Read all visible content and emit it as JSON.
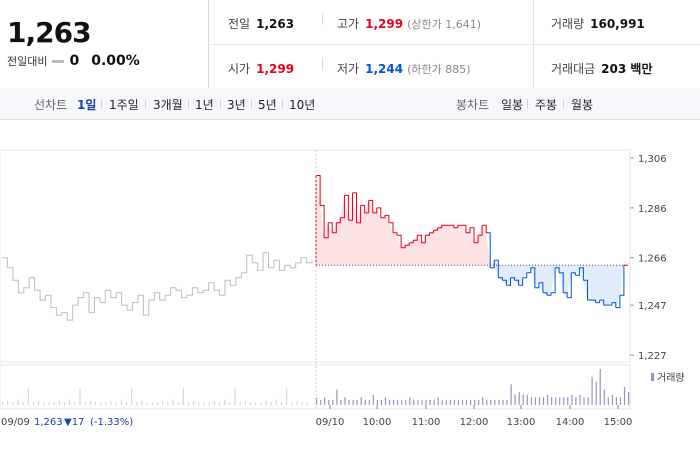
{
  "quote": {
    "price": "1,263",
    "change_label": "전일대비",
    "change_value": "0",
    "change_percent": "0.00%",
    "prev_close_label": "전일",
    "prev_close": "1,263",
    "high_label": "고가",
    "high": "1,299",
    "high_limit": "(상한가 1,641)",
    "volume_label": "거래량",
    "volume": "160,991",
    "open_label": "시가",
    "open": "1,299",
    "low_label": "저가",
    "low": "1,244",
    "low_limit": "(하한가 885)",
    "amount_label": "거래대금",
    "amount": "203 백만"
  },
  "tabs": {
    "line_label": "선차트",
    "line_items": [
      "1일",
      "1주일",
      "3개월",
      "1년",
      "3년",
      "5년",
      "10년"
    ],
    "active": "1일",
    "candle_label": "봉차트",
    "candle_items": [
      "일봉",
      "주봉",
      "월봉"
    ]
  },
  "footer": {
    "prev_date": "09/09",
    "prev_price": "1,263",
    "prev_change": "▼17",
    "prev_pct": "(-1.33%)"
  },
  "colors": {
    "up": "#e8001c",
    "down": "#0055d4",
    "prev_day": "#bdbdbd",
    "volume": "#9a93b8"
  },
  "chart_data": {
    "type": "line",
    "y_ticks": [
      "1,306",
      "1,286",
      "1,266",
      "1,247",
      "1,227"
    ],
    "y_tick_values": [
      1306,
      1286,
      1266,
      1247,
      1227
    ],
    "ylim": [
      1227,
      1306
    ],
    "x_ticks": [
      "09/10",
      "10:00",
      "11:00",
      "12:00",
      "13:00",
      "14:00",
      "15:00"
    ],
    "baseline": 1263,
    "volume_legend": "거래량",
    "prev_day_series": {
      "name": "09/09",
      "values": [
        1266,
        1262,
        1257,
        1252,
        1254,
        1258,
        1253,
        1249,
        1251,
        1246,
        1243,
        1244,
        1241,
        1247,
        1250,
        1252,
        1244,
        1250,
        1248,
        1253,
        1250,
        1252,
        1247,
        1245,
        1248,
        1251,
        1243,
        1249,
        1252,
        1249,
        1251,
        1254,
        1253,
        1250,
        1251,
        1254,
        1252,
        1253,
        1256,
        1253,
        1251,
        1257,
        1255,
        1258,
        1260,
        1267,
        1264,
        1261,
        1268,
        1262,
        1265,
        1261,
        1263,
        1262,
        1264,
        1266,
        1264,
        1265
      ]
    },
    "today_series": {
      "name": "09/10",
      "times": [
        "09:00",
        "09:02",
        "09:05",
        "09:10",
        "09:15",
        "09:20",
        "09:25",
        "09:30",
        "09:35",
        "09:40",
        "09:45",
        "09:50",
        "09:55",
        "10:00",
        "10:05",
        "10:10",
        "10:15",
        "10:20",
        "10:25",
        "10:30",
        "10:35",
        "10:40",
        "10:45",
        "10:50",
        "10:55",
        "11:00",
        "11:05",
        "11:10",
        "11:15",
        "11:20",
        "11:25",
        "11:30",
        "11:35",
        "11:40",
        "11:45",
        "11:50",
        "11:55",
        "12:00",
        "12:05",
        "12:10",
        "12:15",
        "12:20",
        "12:25",
        "12:30",
        "12:35",
        "12:40",
        "12:45",
        "12:50",
        "12:55",
        "13:00",
        "13:05",
        "13:10",
        "13:15",
        "13:20",
        "13:25",
        "13:30",
        "13:35",
        "13:40",
        "13:45",
        "13:50",
        "13:55",
        "14:00",
        "14:05",
        "14:10",
        "14:15",
        "14:20",
        "14:25",
        "14:30",
        "14:35",
        "14:40",
        "14:45",
        "14:50",
        "14:55",
        "15:00",
        "15:05",
        "15:10",
        "15:15",
        "15:20"
      ],
      "values": [
        1299,
        1287,
        1274,
        1280,
        1276,
        1280,
        1282,
        1291,
        1281,
        1292,
        1280,
        1287,
        1284,
        1289,
        1284,
        1286,
        1282,
        1283,
        1280,
        1276,
        1275,
        1270,
        1271,
        1272,
        1273,
        1275,
        1272,
        1275,
        1276,
        1277,
        1278,
        1279,
        1279,
        1279,
        1278,
        1279,
        1279,
        1276,
        1278,
        1272,
        1275,
        1279,
        1276,
        1262,
        1265,
        1258,
        1257,
        1255,
        1258,
        1257,
        1255,
        1258,
        1260,
        1262,
        1254,
        1256,
        1252,
        1251,
        1252,
        1262,
        1260,
        1252,
        1250,
        1260,
        1259,
        1262,
        1257,
        1249,
        1249,
        1248,
        1249,
        1247,
        1247,
        1248,
        1246,
        1251,
        1263,
        1263
      ]
    },
    "volume_values": [
      3,
      2,
      3,
      2,
      2,
      6,
      2,
      3,
      2,
      2,
      2,
      3,
      2,
      2,
      4,
      2,
      2,
      3,
      2,
      2,
      2,
      2,
      2,
      3,
      2,
      2,
      2,
      2,
      2,
      2,
      3,
      2,
      2,
      2,
      2,
      2,
      2,
      2,
      2,
      2,
      2,
      3,
      2,
      2,
      2,
      2,
      2,
      2,
      8,
      4,
      5,
      4,
      4,
      3,
      3,
      3,
      3,
      4,
      3,
      3,
      3,
      3,
      3,
      4,
      3,
      4,
      3,
      3,
      11,
      9,
      14,
      6,
      3,
      4,
      3,
      3,
      7,
      5
    ]
  }
}
